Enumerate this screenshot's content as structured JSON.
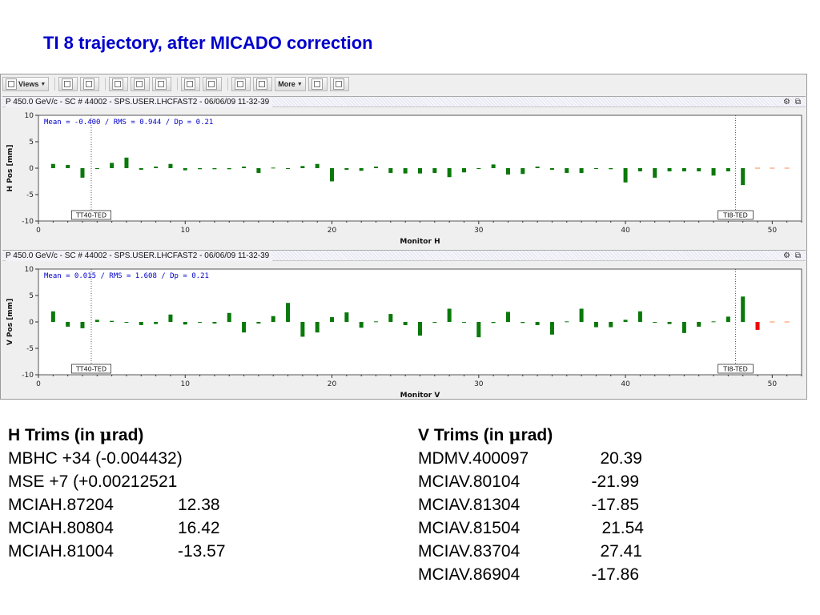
{
  "slide_title": "TI 8 trajectory, after MICADO correction",
  "toolbar": {
    "views_label": "Views",
    "more_label": "More",
    "icons": [
      "views-icon",
      "undo-icon",
      "grid-icon",
      "layout-2-icon",
      "layout-3-icon",
      "layout-4-icon",
      "properties-icon",
      "table-icon",
      "blank-icon",
      "table-grid-icon",
      "chart-icon",
      "print-icon"
    ]
  },
  "panels": [
    {
      "header": "P 450.0 GeV/c - SC # 44002 - SPS.USER.LHCFAST2 - 06/06/09 11-32-39",
      "stats": "Mean =  -0.400 / RMS =   0.944 / Dp =   0.21"
    },
    {
      "header": "P 450.0 GeV/c - SC # 44002 - SPS.USER.LHCFAST2 - 06/06/09 11-32-39",
      "stats": "Mean =   0.015 / RMS =   1.608 / Dp =   0.21"
    }
  ],
  "chart_data": [
    {
      "type": "bar",
      "ylabel": "H Pos [mm]",
      "xlabel": "Monitor H",
      "xlim": [
        0,
        52
      ],
      "ylim": [
        -10,
        10
      ],
      "xticks": [
        0,
        10,
        20,
        30,
        40,
        50
      ],
      "yticks": [
        10,
        5,
        0,
        -5,
        -10
      ],
      "grid": false,
      "colors": {
        "normal": "#0a780a",
        "highlight": "#ee0000",
        "missing": "#ff8844"
      },
      "markers": [
        {
          "x": 3.6,
          "label": "TT40-TED"
        },
        {
          "x": 47.5,
          "label": "TI8-TED"
        }
      ],
      "x": [
        1,
        2,
        3,
        4,
        5,
        6,
        7,
        8,
        9,
        10,
        11,
        12,
        13,
        14,
        15,
        16,
        17,
        18,
        19,
        20,
        21,
        22,
        23,
        24,
        25,
        26,
        27,
        28,
        29,
        30,
        31,
        32,
        33,
        34,
        35,
        36,
        37,
        38,
        39,
        40,
        41,
        42,
        43,
        44,
        45,
        46,
        47,
        48,
        49,
        50,
        51
      ],
      "values": [
        0.8,
        0.6,
        -1.8,
        0.0,
        1.0,
        2.0,
        -0.3,
        0.3,
        0.8,
        -0.4,
        -0.2,
        -0.2,
        -0.2,
        0.3,
        -0.9,
        0.1,
        -0.1,
        0.4,
        0.8,
        -2.5,
        -0.3,
        -0.5,
        0.3,
        -0.9,
        -1.0,
        -1.0,
        -0.9,
        -1.7,
        -0.8,
        -0.1,
        0.7,
        -1.2,
        -1.1,
        0.3,
        -0.3,
        -0.9,
        -0.9,
        -0.1,
        -0.2,
        -2.7,
        -0.6,
        -1.8,
        -0.6,
        -0.6,
        -0.6,
        -1.4,
        -0.6,
        -3.2,
        null,
        null,
        null
      ],
      "highlight_index": 48
    },
    {
      "type": "bar",
      "ylabel": "V Pos [mm]",
      "xlabel": "Monitor V",
      "xlim": [
        0,
        52
      ],
      "ylim": [
        -10,
        10
      ],
      "xticks": [
        0,
        10,
        20,
        30,
        40,
        50
      ],
      "yticks": [
        10,
        5,
        0,
        -5,
        -10
      ],
      "grid": false,
      "colors": {
        "normal": "#0a780a",
        "highlight": "#ee0000",
        "missing": "#ff8844"
      },
      "markers": [
        {
          "x": 3.6,
          "label": "TT40-TED"
        },
        {
          "x": 47.5,
          "label": "TI8-TED"
        }
      ],
      "x": [
        1,
        2,
        3,
        4,
        5,
        6,
        7,
        8,
        9,
        10,
        11,
        12,
        13,
        14,
        15,
        16,
        17,
        18,
        19,
        20,
        21,
        22,
        23,
        24,
        25,
        26,
        27,
        28,
        29,
        30,
        31,
        32,
        33,
        34,
        35,
        36,
        37,
        38,
        39,
        40,
        41,
        42,
        43,
        44,
        45,
        46,
        47,
        48,
        49,
        50,
        51
      ],
      "values": [
        2.0,
        -0.9,
        -1.2,
        0.4,
        0.2,
        -0.1,
        -0.6,
        -0.4,
        1.4,
        -0.5,
        -0.1,
        -0.3,
        1.7,
        -2.0,
        -0.3,
        1.1,
        3.6,
        -2.8,
        -2.0,
        0.9,
        1.8,
        -1.1,
        0.1,
        1.5,
        -0.6,
        -2.6,
        0.0,
        2.5,
        -0.1,
        -2.9,
        -0.2,
        1.9,
        -0.2,
        -0.6,
        -2.4,
        0.1,
        2.5,
        -1.0,
        -1.0,
        0.4,
        2.0,
        0.0,
        -0.4,
        -2.1,
        -0.9,
        0.1,
        1.0,
        4.8,
        -1.5,
        null,
        null
      ],
      "highlight_index": 48
    }
  ],
  "trims": {
    "h": {
      "heading_prefix": "H Trims (in ",
      "heading_mu": "μ",
      "heading_suffix": "rad)",
      "rows": [
        {
          "name": "MBHC +34 (-0.004432)",
          "value": ""
        },
        {
          "name": "MSE +7 (+0.00212521",
          "value": ""
        },
        {
          "name": "MCIAH.87204",
          "value": "12.38"
        },
        {
          "name": "MCIAH.80804",
          "value": "16.42"
        },
        {
          "name": "MCIAH.81004",
          "value": "-13.57"
        }
      ]
    },
    "v": {
      "heading_prefix": "V Trims (in ",
      "heading_mu": "μ",
      "heading_suffix": "rad)",
      "rows": [
        {
          "name": "MDMV.400097",
          "value": "20.39"
        },
        {
          "name": "MCIAV.80104",
          "value": "-21.99"
        },
        {
          "name": "MCIAV.81304",
          "value": "-17.85"
        },
        {
          "name": "MCIAV.81504",
          "value": "21.54"
        },
        {
          "name": "MCIAV.83704",
          "value": "27.41"
        },
        {
          "name": "MCIAV.86904",
          "value": "-17.86"
        }
      ]
    }
  }
}
